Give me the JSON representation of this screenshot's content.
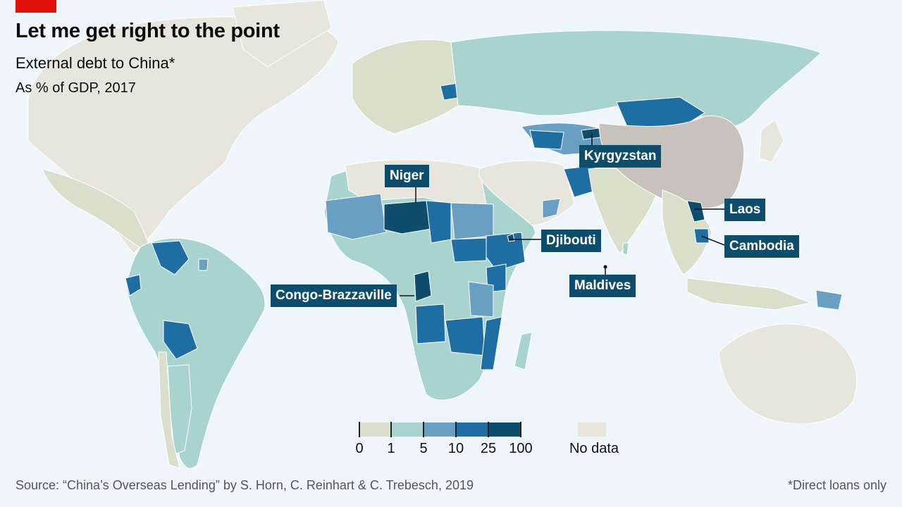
{
  "header": {
    "title": "Let me get right to the point",
    "subtitle": "External debt to China*",
    "unit": "As % of GDP, 2017"
  },
  "legend": {
    "bins": [
      {
        "from": "0",
        "to": "1",
        "color": "#d9dfcb"
      },
      {
        "from": "1",
        "to": "5",
        "color": "#a9d3cf"
      },
      {
        "from": "5",
        "to": "10",
        "color": "#6a9fc4"
      },
      {
        "from": "10",
        "to": "25",
        "color": "#1e6ea4"
      },
      {
        "from": "25",
        "to": "100",
        "color": "#0f4d6c"
      }
    ],
    "tick_labels": [
      "0",
      "1",
      "5",
      "10",
      "25",
      "100"
    ],
    "no_data_label": "No data",
    "no_data_color": "#e7e5dc"
  },
  "callouts": {
    "kyrgyzstan": "Kyrgyzstan",
    "niger": "Niger",
    "laos": "Laos",
    "djibouti": "Djibouti",
    "cambodia": "Cambodia",
    "maldives": "Maldives",
    "congo": "Congo-Brazzaville"
  },
  "footer": {
    "source": "Source: “China’s Overseas Lending” by S. Horn, C. Reinhart & C. Trebesch, 2019",
    "footnote": "*Direct loans only"
  },
  "colors": {
    "background": "#eef6fb",
    "china": "#c7c2bb",
    "brand_red": "#e3120b"
  }
}
